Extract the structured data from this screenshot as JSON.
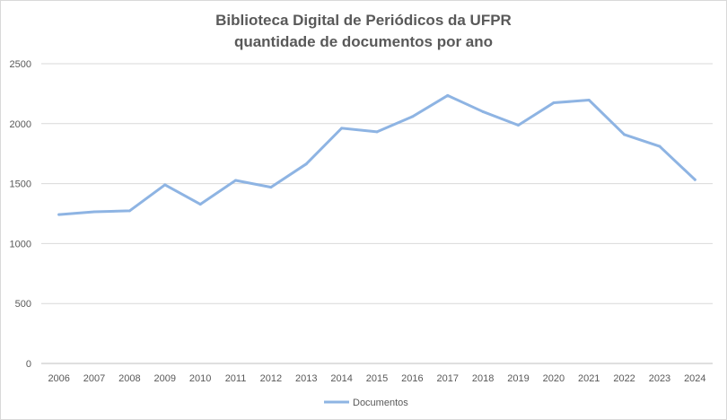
{
  "chart_data": {
    "type": "line",
    "title": "Biblioteca Digital de Periódicos da UFPR",
    "subtitle": "quantidade de documentos por ano",
    "xlabel": "",
    "ylabel": "",
    "categories": [
      "2006",
      "2007",
      "2008",
      "2009",
      "2010",
      "2011",
      "2012",
      "2013",
      "2014",
      "2015",
      "2016",
      "2017",
      "2018",
      "2019",
      "2020",
      "2021",
      "2022",
      "2023",
      "2024"
    ],
    "series": [
      {
        "name": "Documentos",
        "color": "#8eb4e3",
        "values": [
          1242,
          1265,
          1273,
          1490,
          1328,
          1527,
          1470,
          1664,
          1962,
          1932,
          2058,
          2235,
          2100,
          1987,
          2174,
          2197,
          1909,
          1811,
          1533
        ]
      }
    ],
    "ylim": [
      0,
      2500
    ],
    "yticks": [
      0,
      500,
      1000,
      1500,
      2000,
      2500
    ],
    "grid": true,
    "legend": "bottom"
  }
}
